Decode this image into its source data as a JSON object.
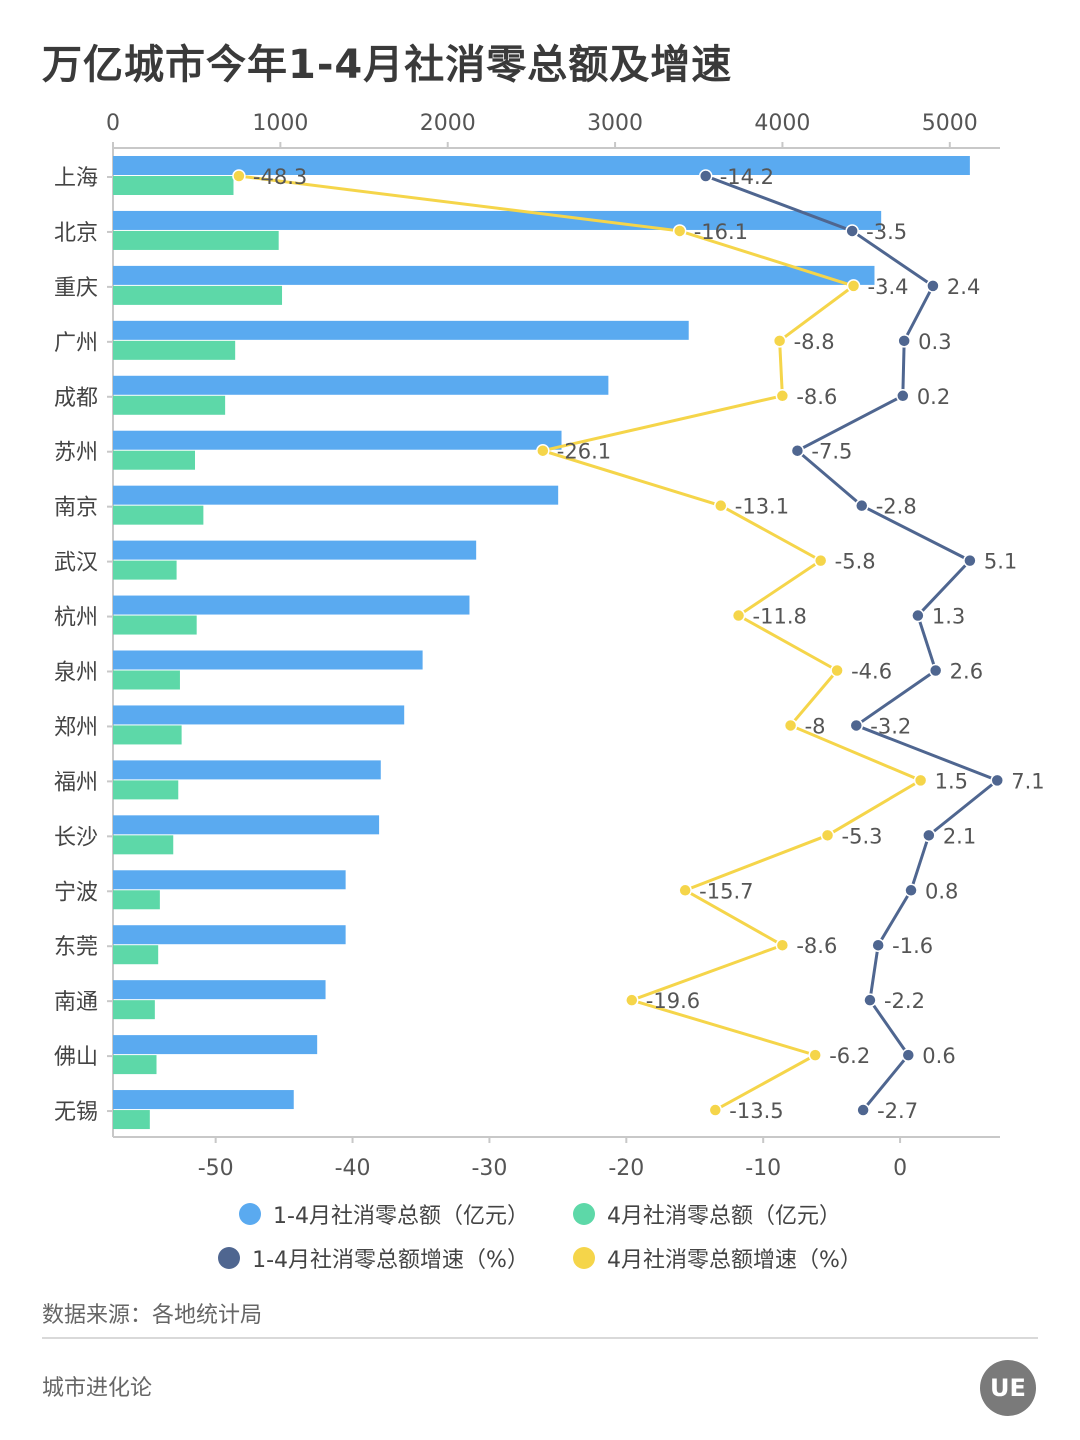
{
  "title": "万亿城市今年1-4月社消零总额及增速",
  "source": "数据来源：各地统计局",
  "brand": "城市进化论",
  "logo_text": "UE",
  "colors": {
    "total_bar": "#5aaaf0",
    "april_bar": "#5dd8a8",
    "total_growth": "#4f6690",
    "april_growth": "#f5d54a"
  },
  "chart_data": {
    "type": "bar",
    "title": "万亿城市今年1-4月社消零总额及增速",
    "categories": [
      "上海",
      "北京",
      "重庆",
      "广州",
      "成都",
      "苏州",
      "南京",
      "武汉",
      "杭州",
      "泉州",
      "郑州",
      "福州",
      "长沙",
      "宁波",
      "东莞",
      "南通",
      "佛山",
      "无锡"
    ],
    "top_axis": {
      "ticks": [
        "0",
        "1000",
        "2000",
        "3000",
        "4000",
        "5000"
      ],
      "range": [
        0,
        5300
      ]
    },
    "bottom_axis": {
      "ticks": [
        "-50",
        "-40",
        "-30",
        "-20",
        "-10",
        "0"
      ],
      "range": [
        -57.5,
        7.3
      ]
    },
    "series": [
      {
        "name": "1-4月社消零总额（亿元）",
        "axis": "top",
        "kind": "bar",
        "color": "#5aaaf0",
        "values": [
          5120,
          4590,
          4550,
          3440,
          2960,
          2680,
          2660,
          2170,
          2130,
          1850,
          1740,
          1600,
          1590,
          1390,
          1390,
          1270,
          1220,
          1080
        ]
      },
      {
        "name": "4月社消零总额（亿元）",
        "axis": "top",
        "kind": "bar",
        "color": "#5dd8a8",
        "values": [
          720,
          990,
          1010,
          730,
          670,
          490,
          540,
          380,
          500,
          400,
          410,
          390,
          360,
          280,
          270,
          250,
          260,
          220
        ]
      },
      {
        "name": "1-4月社消零总额增速（%）",
        "axis": "bottom",
        "kind": "line",
        "color": "#4f6690",
        "values": [
          -14.2,
          -3.5,
          2.4,
          0.3,
          0.2,
          -7.5,
          -2.8,
          5.1,
          1.3,
          2.6,
          -3.2,
          7.1,
          2.1,
          0.8,
          -1.6,
          -2.2,
          0.6,
          -2.7
        ],
        "labels": [
          "-14.2",
          "-3.5",
          "2.4",
          "0.3",
          "0.2",
          "-7.5",
          "-2.8",
          "5.1",
          "1.3",
          "2.6",
          "-3.2",
          "7.1",
          "2.1",
          "0.8",
          "-1.6",
          "-2.2",
          "0.6",
          "-2.7"
        ]
      },
      {
        "name": "4月社消零总额增速（%）",
        "axis": "bottom",
        "kind": "line",
        "color": "#f5d54a",
        "values": [
          -48.3,
          -16.1,
          -3.4,
          -8.8,
          -8.6,
          -26.1,
          -13.1,
          -5.8,
          -11.8,
          -4.6,
          -8,
          1.5,
          -5.3,
          -15.7,
          -8.6,
          -19.6,
          -6.2,
          -13.5
        ],
        "labels": [
          "-48.3",
          "-16.1",
          "-3.4",
          "-8.8",
          "-8.6",
          "-26.1",
          "-13.1",
          "-5.8",
          "-11.8",
          "-4.6",
          "-8",
          "1.5",
          "-5.3",
          "-15.7",
          "-8.6",
          "-19.6",
          "-6.2",
          "-13.5"
        ]
      }
    ],
    "legend": [
      "1-4月社消零总额（亿元）",
      "4月社消零总额（亿元）",
      "1-4月社消零总额增速（%）",
      "4月社消零总额增速（%）"
    ]
  }
}
